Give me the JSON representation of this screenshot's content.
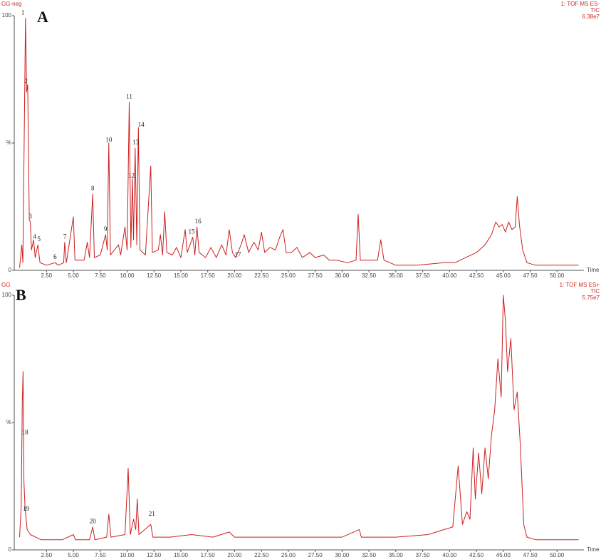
{
  "chart_data": [
    {
      "type": "line",
      "panel_label": "A",
      "sample": "GG-neg",
      "header_lines": [
        "1: TOF MS ES-",
        "TIC",
        "6.38e7"
      ],
      "x_label": "Time",
      "color": "#cc1f1f",
      "xlim": [
        -0.5,
        52.5
      ],
      "ylim": [
        0,
        100
      ],
      "xticks": [
        {
          "value": 2.5,
          "label": "2.50"
        },
        {
          "value": 5,
          "label": "5.00"
        },
        {
          "value": 7.5,
          "label": "7.50"
        },
        {
          "value": 10,
          "label": "10.00"
        },
        {
          "value": 12.5,
          "label": "12.50"
        },
        {
          "value": 15,
          "label": "15.00"
        },
        {
          "value": 17.5,
          "label": "17.50"
        },
        {
          "value": 20,
          "label": "20.00"
        },
        {
          "value": 22.5,
          "label": "22.50"
        },
        {
          "value": 25,
          "label": "25.00"
        },
        {
          "value": 27.5,
          "label": "27.50"
        },
        {
          "value": 30,
          "label": "30.00"
        },
        {
          "value": 32.5,
          "label": "32.50"
        },
        {
          "value": 35,
          "label": "35.00"
        },
        {
          "value": 37.5,
          "label": "37.50"
        },
        {
          "value": 40,
          "label": "40.00"
        },
        {
          "value": 42.5,
          "label": "42.50"
        },
        {
          "value": 45,
          "label": "45.00"
        },
        {
          "value": 47.5,
          "label": "47.50"
        },
        {
          "value": 50,
          "label": "50.00"
        }
      ],
      "yticks": [
        0,
        {
          "value": 50,
          "label": "%"
        },
        100
      ],
      "x": [
        0,
        0.2,
        0.3,
        0.45,
        0.55,
        0.65,
        0.75,
        0.9,
        1.0,
        1.1,
        1.3,
        1.45,
        1.7,
        1.9,
        2.5,
        3.3,
        3.6,
        4.1,
        4.2,
        4.35,
        5.0,
        5.15,
        6.0,
        6.3,
        6.5,
        6.8,
        6.95,
        7.5,
        8.0,
        8.15,
        8.3,
        8.45,
        9.2,
        9.4,
        9.8,
        10.0,
        10.2,
        10.35,
        10.5,
        10.6,
        10.75,
        10.9,
        11.05,
        11.2,
        11.7,
        12.2,
        12.35,
        12.9,
        13.1,
        13.3,
        13.5,
        13.7,
        14.2,
        14.6,
        15.0,
        15.4,
        15.6,
        16.1,
        16.3,
        16.5,
        16.7,
        17.3,
        17.8,
        18.3,
        18.8,
        19.2,
        19.5,
        19.8,
        20.1,
        20.6,
        20.9,
        21.3,
        21.8,
        22.2,
        22.5,
        22.8,
        23.3,
        23.8,
        24.2,
        24.5,
        24.8,
        25.3,
        25.8,
        26.3,
        27.0,
        27.5,
        28.3,
        28.8,
        29.5,
        30.5,
        31.3,
        31.5,
        31.7,
        33.3,
        33.6,
        33.9,
        35.0,
        37.0,
        39.5,
        40.5,
        41.5,
        42.5,
        43.3,
        43.9,
        44.3,
        44.6,
        44.9,
        45.2,
        45.5,
        45.8,
        46.1,
        46.3,
        46.5,
        46.8,
        47.2,
        48,
        52
      ],
      "values": [
        1,
        10,
        3,
        60,
        99,
        70,
        73,
        20,
        19,
        8,
        12,
        5,
        10,
        3,
        2,
        3,
        2,
        3,
        11,
        3,
        21,
        4,
        4,
        11,
        5,
        30,
        5,
        6,
        14,
        8,
        50,
        6,
        10,
        6,
        17,
        8,
        66,
        9,
        36,
        12,
        48,
        10,
        56,
        8,
        6,
        41,
        7,
        8,
        14,
        6,
        23,
        7,
        6,
        9,
        5,
        16,
        7,
        13,
        6,
        17,
        7,
        5,
        9,
        5,
        10,
        6,
        16,
        7,
        5,
        10,
        14,
        7,
        11,
        8,
        15,
        7,
        9,
        8,
        13,
        16,
        7,
        7,
        9,
        5,
        7,
        5,
        6,
        4,
        4,
        3,
        4,
        22,
        4,
        4,
        12,
        4,
        2,
        2,
        3,
        3,
        5,
        7,
        10,
        14,
        19,
        17,
        18,
        15,
        19,
        16,
        17,
        29,
        18,
        8,
        3,
        2,
        2
      ],
      "annotations": [
        {
          "text": "1",
          "x": 0.3,
          "y": 101
        },
        {
          "text": "2",
          "x": 0.6,
          "y": 74
        },
        {
          "text": "3",
          "x": 1.0,
          "y": 21
        },
        {
          "text": "4",
          "x": 1.4,
          "y": 13
        },
        {
          "text": "5",
          "x": 1.8,
          "y": 12
        },
        {
          "text": "6",
          "x": 3.3,
          "y": 5
        },
        {
          "text": "7",
          "x": 4.2,
          "y": 13
        },
        {
          "text": "8",
          "x": 6.8,
          "y": 32
        },
        {
          "text": "9",
          "x": 8.0,
          "y": 16
        },
        {
          "text": "10",
          "x": 8.3,
          "y": 51
        },
        {
          "text": "11",
          "x": 10.2,
          "y": 68
        },
        {
          "text": "12",
          "x": 10.4,
          "y": 37
        },
        {
          "text": "13",
          "x": 10.8,
          "y": 50
        },
        {
          "text": "14",
          "x": 11.3,
          "y": 57
        },
        {
          "text": "15",
          "x": 16.0,
          "y": 15
        },
        {
          "text": "16",
          "x": 16.6,
          "y": 19
        },
        {
          "text": "17",
          "x": 20.3,
          "y": 6
        }
      ]
    },
    {
      "type": "line",
      "panel_label": "B",
      "sample": "GG",
      "header_lines": [
        "1: TOF MS ES+",
        "TIC",
        "5.75e7"
      ],
      "x_label": "Time",
      "color": "#cc1f1f",
      "xlim": [
        -0.5,
        52.5
      ],
      "ylim": [
        0,
        100
      ],
      "xticks": [
        {
          "value": 2.5,
          "label": "2.50"
        },
        {
          "value": 5,
          "label": "5.00"
        },
        {
          "value": 7.5,
          "label": "7.50"
        },
        {
          "value": 10,
          "label": "10.00"
        },
        {
          "value": 12.5,
          "label": "12.50"
        },
        {
          "value": 15,
          "label": "15.00"
        },
        {
          "value": 17.5,
          "label": "17.50"
        },
        {
          "value": 20,
          "label": "20.00"
        },
        {
          "value": 22.5,
          "label": "22.50"
        },
        {
          "value": 25,
          "label": "25.00"
        },
        {
          "value": 27.5,
          "label": "27.50"
        },
        {
          "value": 30,
          "label": "30.00"
        },
        {
          "value": 32.5,
          "label": "32.50"
        },
        {
          "value": 35,
          "label": "35.00"
        },
        {
          "value": 37.5,
          "label": "37.50"
        },
        {
          "value": 40,
          "label": "40.00"
        },
        {
          "value": 42.5,
          "label": "42.50"
        },
        {
          "value": 45,
          "label": "45.00"
        },
        {
          "value": 47.5,
          "label": "47.50"
        },
        {
          "value": 50,
          "label": "50.00"
        }
      ],
      "yticks": [
        0,
        {
          "value": 50,
          "label": "%"
        },
        100
      ],
      "x": [
        0,
        0.15,
        0.25,
        0.32,
        0.4,
        0.5,
        0.7,
        1.0,
        2,
        4,
        5.0,
        5.2,
        6.5,
        6.8,
        7.0,
        8.1,
        8.3,
        8.5,
        9.8,
        10.1,
        10.3,
        10.6,
        10.8,
        10.95,
        11.1,
        12.2,
        12.4,
        14,
        16,
        18,
        19.5,
        20,
        25,
        30,
        31.6,
        31.8,
        35,
        38,
        39.5,
        40.3,
        40.8,
        41.2,
        41.6,
        41.9,
        42.2,
        42.4,
        42.7,
        43.0,
        43.3,
        43.6,
        43.9,
        44.2,
        44.5,
        44.8,
        45.0,
        45.2,
        45.4,
        45.7,
        46.0,
        46.3,
        46.6,
        46.9,
        47.2,
        48,
        52
      ],
      "values": [
        5,
        17,
        58,
        70,
        27,
        17,
        8,
        6,
        4,
        4,
        6,
        4,
        4,
        9,
        4,
        5,
        14,
        5,
        6,
        32,
        6,
        12,
        8,
        20,
        6,
        10,
        5,
        5,
        6,
        5,
        7,
        5,
        5,
        5,
        8,
        5,
        5,
        6,
        8,
        9,
        33,
        10,
        15,
        12,
        40,
        20,
        38,
        22,
        40,
        28,
        45,
        55,
        75,
        60,
        100,
        90,
        70,
        83,
        55,
        62,
        40,
        10,
        5,
        4,
        4
      ],
      "annotations": [
        {
          "text": "18",
          "x": 0.5,
          "y": 46
        },
        {
          "text": "19",
          "x": 0.6,
          "y": 16
        },
        {
          "text": "20",
          "x": 6.8,
          "y": 11
        },
        {
          "text": "21",
          "x": 12.3,
          "y": 14
        }
      ]
    }
  ]
}
